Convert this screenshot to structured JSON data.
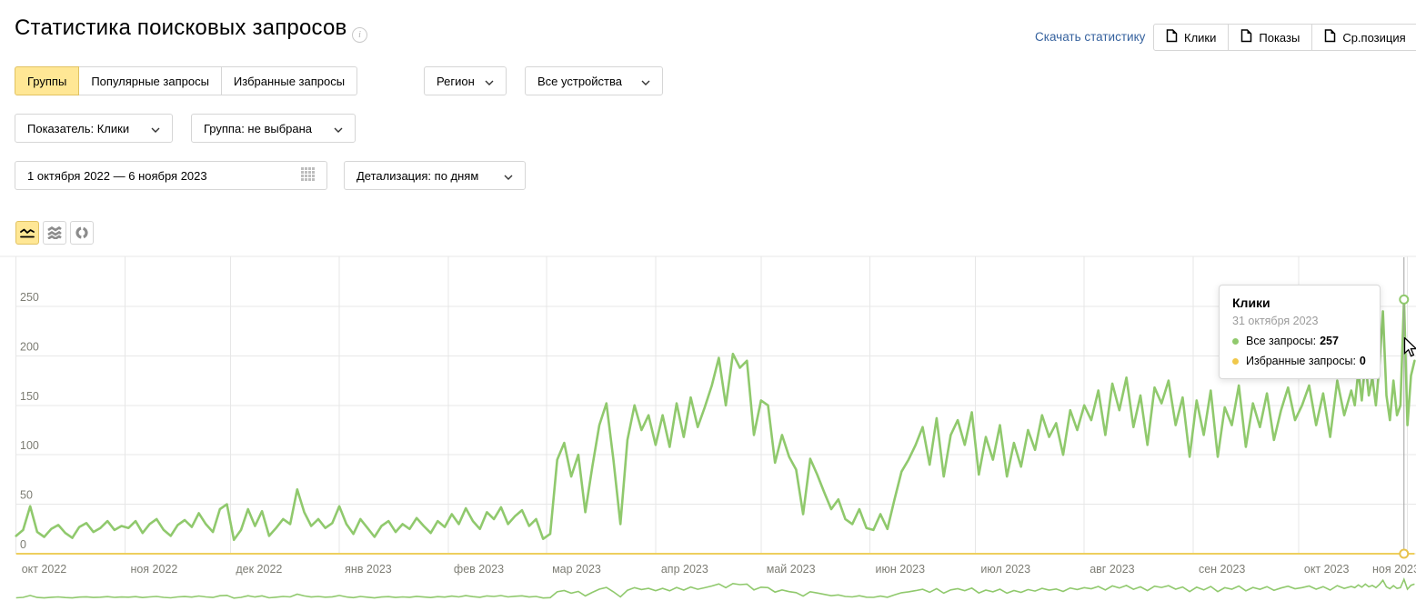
{
  "page": {
    "title": "Статистика поисковых запросов",
    "info_icon_glyph": "i"
  },
  "header": {
    "download_link": "Скачать статистику",
    "export_buttons": [
      {
        "label": "Клики"
      },
      {
        "label": "Показы"
      },
      {
        "label": "Ср.позиция"
      }
    ]
  },
  "filters": {
    "tabs": [
      {
        "label": "Группы",
        "active": true
      },
      {
        "label": "Популярные запросы",
        "active": false
      },
      {
        "label": "Избранные запросы",
        "active": false
      }
    ],
    "region_dropdown": "Регион",
    "devices_dropdown": "Все устройства",
    "metric_dropdown": "Показатель: Клики",
    "group_dropdown": "Группа: не выбрана",
    "date_range": "1 октября 2022 — 6 ноября 2023",
    "detail_dropdown": "Детализация: по дням"
  },
  "chart_toolbar": {
    "selected": "line",
    "types": [
      "line",
      "stacked-area",
      "pie"
    ]
  },
  "tooltip": {
    "title": "Клики",
    "date": "31 октября 2023",
    "rows": [
      {
        "label": "Все запросы:",
        "value": "257",
        "color": "#90c96d"
      },
      {
        "label": "Избранные запросы:",
        "value": "0",
        "color": "#f0c84b"
      }
    ]
  },
  "colors": {
    "accent_yellow": "#ffe795",
    "green_series": "#90c96d",
    "yellow_series": "#eecf5e",
    "link_blue": "#36629e"
  },
  "chart_data": {
    "type": "line",
    "title": "Клики",
    "x_axis": {
      "unit": "day_offset_from_2022-10-01",
      "range_days": [
        0,
        402
      ],
      "month_ticks": [
        {
          "label": "окт 2022",
          "day": 0
        },
        {
          "label": "ноя 2022",
          "day": 31
        },
        {
          "label": "дек 2022",
          "day": 61
        },
        {
          "label": "янв 2023",
          "day": 92
        },
        {
          "label": "фев 2023",
          "day": 123
        },
        {
          "label": "мар 2023",
          "day": 151
        },
        {
          "label": "апр 2023",
          "day": 182
        },
        {
          "label": "май 2023",
          "day": 212
        },
        {
          "label": "июн 2023",
          "day": 243
        },
        {
          "label": "июл 2023",
          "day": 273
        },
        {
          "label": "авг 2023",
          "day": 304
        },
        {
          "label": "сен 2023",
          "day": 335
        },
        {
          "label": "окт 2023",
          "day": 365
        },
        {
          "label": "ноя 2023",
          "day": 396
        }
      ]
    },
    "y_axis": {
      "ticks": [
        0,
        50,
        100,
        150,
        200,
        250
      ],
      "max": 275,
      "grid": true
    },
    "legend_position": "none",
    "sampling_note": "values estimated from pixels, ~2-day resolution (daily near end)",
    "series": [
      {
        "name": "Все запросы",
        "color": "#90c96d",
        "points": [
          [
            0,
            18
          ],
          [
            2,
            24
          ],
          [
            4,
            48
          ],
          [
            6,
            22
          ],
          [
            8,
            17
          ],
          [
            10,
            25
          ],
          [
            12,
            29
          ],
          [
            14,
            21
          ],
          [
            16,
            16
          ],
          [
            18,
            27
          ],
          [
            20,
            31
          ],
          [
            22,
            22
          ],
          [
            24,
            26
          ],
          [
            26,
            33
          ],
          [
            28,
            24
          ],
          [
            30,
            28
          ],
          [
            32,
            26
          ],
          [
            34,
            33
          ],
          [
            36,
            21
          ],
          [
            38,
            30
          ],
          [
            40,
            35
          ],
          [
            42,
            24
          ],
          [
            44,
            18
          ],
          [
            46,
            29
          ],
          [
            48,
            34
          ],
          [
            50,
            27
          ],
          [
            52,
            41
          ],
          [
            54,
            30
          ],
          [
            56,
            22
          ],
          [
            58,
            45
          ],
          [
            60,
            50
          ],
          [
            62,
            14
          ],
          [
            64,
            24
          ],
          [
            66,
            45
          ],
          [
            68,
            28
          ],
          [
            70,
            43
          ],
          [
            72,
            18
          ],
          [
            74,
            26
          ],
          [
            76,
            35
          ],
          [
            78,
            30
          ],
          [
            80,
            65
          ],
          [
            82,
            42
          ],
          [
            84,
            28
          ],
          [
            86,
            35
          ],
          [
            88,
            26
          ],
          [
            90,
            31
          ],
          [
            92,
            48
          ],
          [
            94,
            30
          ],
          [
            96,
            20
          ],
          [
            98,
            35
          ],
          [
            100,
            26
          ],
          [
            102,
            17
          ],
          [
            104,
            28
          ],
          [
            106,
            33
          ],
          [
            108,
            22
          ],
          [
            110,
            30
          ],
          [
            112,
            25
          ],
          [
            114,
            36
          ],
          [
            116,
            28
          ],
          [
            118,
            21
          ],
          [
            120,
            33
          ],
          [
            122,
            27
          ],
          [
            124,
            40
          ],
          [
            126,
            30
          ],
          [
            128,
            46
          ],
          [
            130,
            33
          ],
          [
            132,
            25
          ],
          [
            134,
            42
          ],
          [
            136,
            35
          ],
          [
            138,
            47
          ],
          [
            140,
            30
          ],
          [
            142,
            38
          ],
          [
            144,
            44
          ],
          [
            146,
            28
          ],
          [
            148,
            35
          ],
          [
            150,
            15
          ],
          [
            152,
            20
          ],
          [
            154,
            95
          ],
          [
            156,
            112
          ],
          [
            158,
            78
          ],
          [
            160,
            100
          ],
          [
            162,
            42
          ],
          [
            164,
            88
          ],
          [
            166,
            130
          ],
          [
            168,
            152
          ],
          [
            170,
            95
          ],
          [
            172,
            30
          ],
          [
            174,
            115
          ],
          [
            176,
            150
          ],
          [
            178,
            125
          ],
          [
            180,
            140
          ],
          [
            182,
            110
          ],
          [
            184,
            140
          ],
          [
            186,
            108
          ],
          [
            188,
            152
          ],
          [
            190,
            118
          ],
          [
            192,
            158
          ],
          [
            194,
            128
          ],
          [
            196,
            148
          ],
          [
            198,
            170
          ],
          [
            200,
            198
          ],
          [
            202,
            150
          ],
          [
            204,
            202
          ],
          [
            206,
            188
          ],
          [
            208,
            195
          ],
          [
            210,
            120
          ],
          [
            212,
            155
          ],
          [
            214,
            150
          ],
          [
            216,
            92
          ],
          [
            218,
            120
          ],
          [
            220,
            98
          ],
          [
            222,
            85
          ],
          [
            224,
            40
          ],
          [
            226,
            96
          ],
          [
            228,
            80
          ],
          [
            230,
            62
          ],
          [
            232,
            45
          ],
          [
            234,
            55
          ],
          [
            236,
            35
          ],
          [
            238,
            30
          ],
          [
            240,
            45
          ],
          [
            242,
            26
          ],
          [
            244,
            24
          ],
          [
            246,
            40
          ],
          [
            248,
            25
          ],
          [
            250,
            55
          ],
          [
            252,
            83
          ],
          [
            254,
            95
          ],
          [
            256,
            110
          ],
          [
            258,
            128
          ],
          [
            260,
            90
          ],
          [
            262,
            137
          ],
          [
            264,
            78
          ],
          [
            266,
            120
          ],
          [
            268,
            135
          ],
          [
            270,
            110
          ],
          [
            272,
            143
          ],
          [
            274,
            80
          ],
          [
            276,
            118
          ],
          [
            278,
            95
          ],
          [
            280,
            130
          ],
          [
            282,
            78
          ],
          [
            284,
            112
          ],
          [
            286,
            88
          ],
          [
            288,
            125
          ],
          [
            290,
            105
          ],
          [
            292,
            140
          ],
          [
            294,
            118
          ],
          [
            296,
            132
          ],
          [
            298,
            100
          ],
          [
            300,
            145
          ],
          [
            302,
            125
          ],
          [
            304,
            150
          ],
          [
            306,
            135
          ],
          [
            308,
            165
          ],
          [
            310,
            120
          ],
          [
            312,
            172
          ],
          [
            314,
            145
          ],
          [
            316,
            178
          ],
          [
            318,
            128
          ],
          [
            320,
            160
          ],
          [
            322,
            110
          ],
          [
            324,
            168
          ],
          [
            326,
            152
          ],
          [
            328,
            175
          ],
          [
            330,
            130
          ],
          [
            332,
            158
          ],
          [
            334,
            98
          ],
          [
            336,
            155
          ],
          [
            338,
            120
          ],
          [
            340,
            165
          ],
          [
            342,
            98
          ],
          [
            344,
            148
          ],
          [
            346,
            130
          ],
          [
            348,
            170
          ],
          [
            350,
            108
          ],
          [
            352,
            152
          ],
          [
            354,
            128
          ],
          [
            356,
            162
          ],
          [
            358,
            115
          ],
          [
            360,
            145
          ],
          [
            362,
            168
          ],
          [
            364,
            135
          ],
          [
            366,
            150
          ],
          [
            368,
            170
          ],
          [
            370,
            130
          ],
          [
            372,
            162
          ],
          [
            374,
            118
          ],
          [
            376,
            175
          ],
          [
            378,
            140
          ],
          [
            380,
            165
          ],
          [
            381,
            150
          ],
          [
            382,
            185
          ],
          [
            383,
            155
          ],
          [
            384,
            195
          ],
          [
            385,
            160
          ],
          [
            386,
            178
          ],
          [
            387,
            150
          ],
          [
            388,
            190
          ],
          [
            389,
            245
          ],
          [
            390,
            160
          ],
          [
            391,
            135
          ],
          [
            392,
            175
          ],
          [
            393,
            140
          ],
          [
            394,
            150
          ],
          [
            395,
            257
          ],
          [
            396,
            130
          ],
          [
            397,
            180
          ],
          [
            398,
            195
          ]
        ]
      },
      {
        "name": "Избранные запросы",
        "color": "#eecf5e",
        "points": [
          [
            0,
            0
          ],
          [
            398,
            0
          ]
        ]
      }
    ],
    "hover": {
      "day": 395,
      "date_label": "31 октября 2023",
      "values": {
        "Все запросы": 257,
        "Избранные запросы": 0
      }
    }
  }
}
